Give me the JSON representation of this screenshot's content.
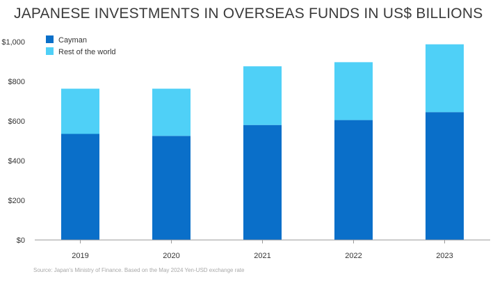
{
  "chart_data": {
    "type": "bar",
    "stacked": true,
    "title": "JAPANESE INVESTMENTS IN OVERSEAS FUNDS IN US$ BILLIONS",
    "categories": [
      "2019",
      "2020",
      "2021",
      "2022",
      "2023"
    ],
    "series": [
      {
        "name": "Cayman",
        "color": "#0a6fc9",
        "values": [
          535,
          525,
          580,
          605,
          645
        ]
      },
      {
        "name": "Rest of the world",
        "color": "#4fd0f7",
        "values": [
          228,
          238,
          296,
          292,
          342
        ]
      }
    ],
    "ylim": [
      0,
      1000
    ],
    "yticks": [
      "$0",
      "$200",
      "$400",
      "$600",
      "$800",
      "$1,000"
    ],
    "ytick_values": [
      0,
      200,
      400,
      600,
      800,
      1000
    ],
    "grid": false,
    "legend_position": "top-left",
    "source": "Source: Japan's Ministry of Finance. Based on the May 2024 Yen-USD exchange rate"
  }
}
